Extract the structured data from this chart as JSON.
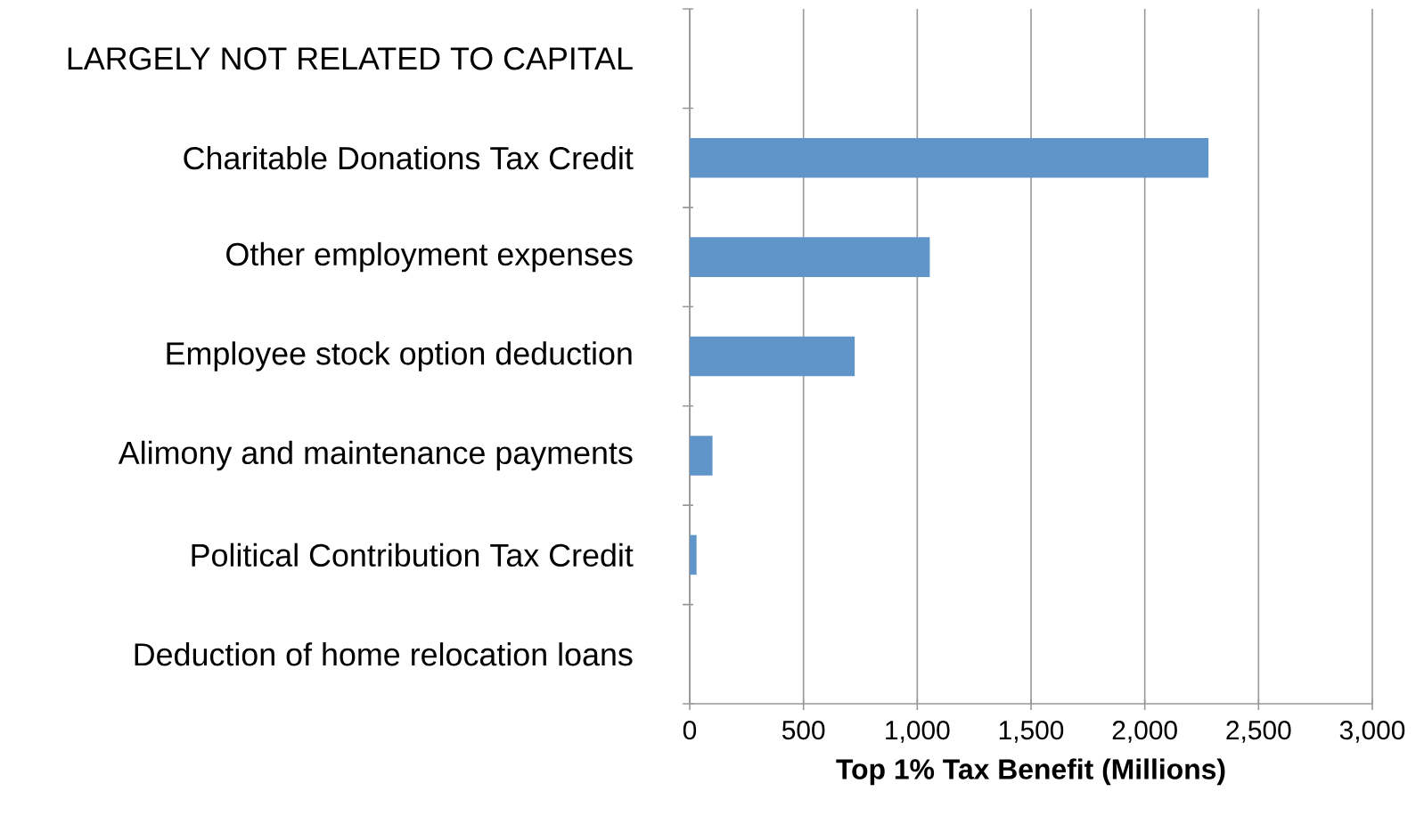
{
  "chart_data": {
    "type": "bar",
    "orientation": "horizontal",
    "xlabel": "**Top 1% Tax Benefit (Millions)**",
    "categories": [
      "LARGELY NOT RELATED TO CAPITAL",
      "Charitable Donations Tax Credit",
      "Other employment expenses",
      "Employee stock option deduction",
      "Alimony and maintenance payments",
      "Political Contribution Tax Credit",
      "Deduction of home relocation loans"
    ],
    "values": [
      null,
      2280,
      1055,
      725,
      100,
      30,
      0
    ],
    "color": "#5f95c8",
    "xlim": [
      0,
      3000
    ],
    "xticks": [
      0,
      {
        "value": 500,
        "label": "500"
      },
      {
        "value": 1000,
        "label": "1,000"
      },
      {
        "value": 1500,
        "label": "1,500"
      },
      {
        "value": 2000,
        "label": "2,000"
      },
      {
        "value": 2500,
        "label": "2,500"
      },
      {
        "value": 3000,
        "label": "3,000"
      }
    ],
    "grid": "x"
  }
}
